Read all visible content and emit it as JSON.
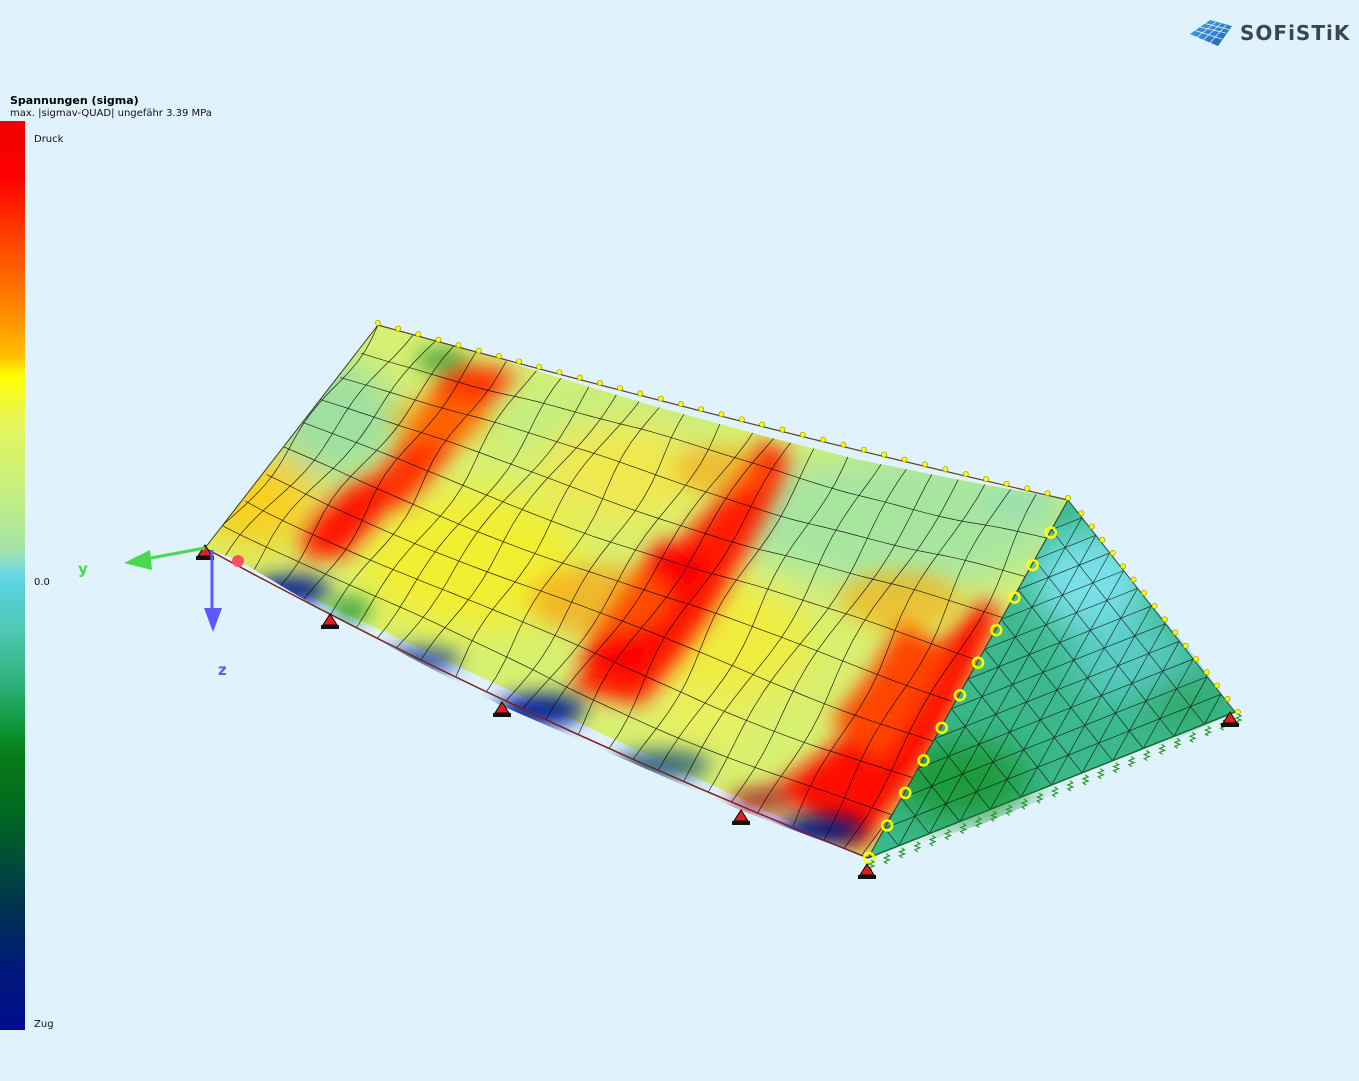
{
  "legend": {
    "title": "Spannungen (sigma)",
    "subtitle": "max. |sigmav-QUAD| ungefähr 3.39 MPa",
    "top_label": "Druck",
    "mid_label": "0.0",
    "bottom_label": "Zug"
  },
  "axes": {
    "y_label": "y",
    "z_label": "z",
    "y_color": "#4cd84c",
    "z_color": "#5a5aff"
  },
  "logo": {
    "text": "SOFiSTiK",
    "icon": "sofistik-mesh-logo-icon"
  },
  "colors": {
    "background": "#e0f2fc",
    "compression": "#ff0000",
    "tension": "#000c90",
    "support_node": "#ffff00",
    "mesh_line": "#000000"
  }
}
